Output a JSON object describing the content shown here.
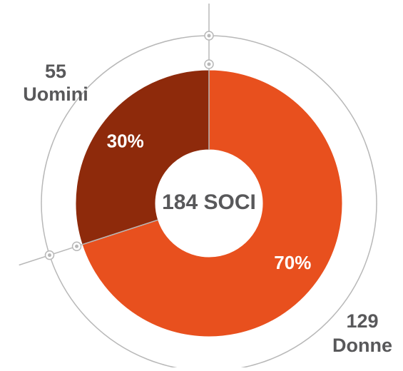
{
  "chart_data": {
    "type": "donut",
    "categories": [
      "Uomini",
      "Donne"
    ],
    "values": [
      30,
      70
    ],
    "value_labels": [
      "30%",
      "70%"
    ],
    "counts": [
      55,
      129
    ],
    "colors": [
      "#8e2a0b",
      "#e8501e"
    ],
    "center_label": "184 SOCI"
  }
}
